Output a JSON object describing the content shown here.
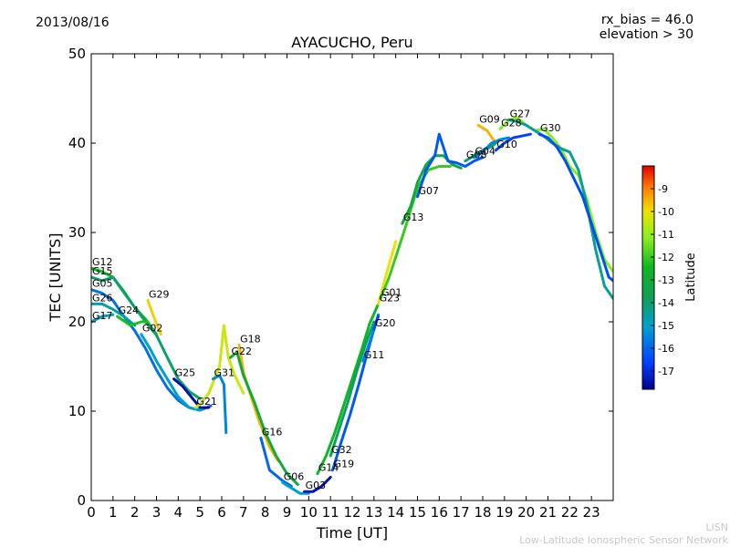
{
  "header": {
    "date": "2013/08/16",
    "rx_bias": "rx_bias = 46.0",
    "elevation": "elevation > 30",
    "title": "AYACUCHO, Peru"
  },
  "credit": {
    "line1": "LISN",
    "line2": "Low-Latitude Ionospheric Sensor Network"
  },
  "chart_data": {
    "type": "scatter",
    "title": "AYACUCHO, Peru",
    "xlabel": "Time [UT]",
    "ylabel": "TEC [UNITS]",
    "xlim": [
      0,
      24
    ],
    "ylim": [
      0,
      50
    ],
    "xticks": [
      "0",
      "1",
      "2",
      "3",
      "4",
      "5",
      "6",
      "7",
      "8",
      "9",
      "10",
      "11",
      "12",
      "13",
      "14",
      "15",
      "16",
      "17",
      "18",
      "19",
      "20",
      "21",
      "22",
      "23"
    ],
    "yticks": [
      "0",
      "10",
      "20",
      "30",
      "40",
      "50"
    ],
    "colorbar": {
      "label": "Latitude",
      "ticks": [
        "-9",
        "-10",
        "-11",
        "-12",
        "-13",
        "-14",
        "-15",
        "-16",
        "-17"
      ],
      "range": [
        -17.8,
        -8.0
      ]
    },
    "series": [
      {
        "name": "G12",
        "lat": -12.5,
        "points": [
          [
            0,
            26
          ],
          [
            0.5,
            25.6
          ],
          [
            1,
            25
          ],
          [
            1.5,
            23.4
          ],
          [
            2,
            21.6
          ],
          [
            2.5,
            20.3
          ],
          [
            3,
            18.6
          ]
        ]
      },
      {
        "name": "G15",
        "lat": -14.0,
        "points": [
          [
            0,
            25
          ],
          [
            0.5,
            24.6
          ],
          [
            1,
            25
          ],
          [
            1.4,
            23.6
          ],
          [
            2,
            21.6
          ],
          [
            2.5,
            20
          ],
          [
            3,
            18.5
          ],
          [
            3.5,
            16
          ],
          [
            4,
            13.6
          ],
          [
            4.5,
            12.2
          ],
          [
            5,
            11.4
          ]
        ]
      },
      {
        "name": "G05",
        "lat": -15.8,
        "points": [
          [
            0,
            23.6
          ],
          [
            0.5,
            23.2
          ],
          [
            1,
            22.4
          ],
          [
            1.5,
            20.6
          ],
          [
            2,
            19
          ],
          [
            2.5,
            17
          ],
          [
            3,
            14.6
          ],
          [
            3.5,
            12.6
          ],
          [
            4,
            11.2
          ],
          [
            4.5,
            10.4
          ],
          [
            5,
            10.1
          ],
          [
            5.5,
            10.6
          ]
        ]
      },
      {
        "name": "G26",
        "lat": -14.6,
        "points": [
          [
            0,
            22
          ],
          [
            0.5,
            22
          ],
          [
            1,
            21.4
          ],
          [
            1.5,
            20.6
          ],
          [
            2,
            19.6
          ]
        ]
      },
      {
        "name": "G17",
        "lat": -14.8,
        "points": [
          [
            0,
            20
          ],
          [
            0.5,
            20.6
          ],
          [
            1,
            20.8
          ]
        ]
      },
      {
        "name": "G24",
        "lat": -12.3,
        "points": [
          [
            1.2,
            20.6
          ],
          [
            1.8,
            19.6
          ],
          [
            2.3,
            20
          ],
          [
            2.6,
            20
          ]
        ]
      },
      {
        "name": "G29",
        "lat": -9.8,
        "points": [
          [
            2.6,
            22.4
          ],
          [
            2.9,
            20.4
          ],
          [
            3.2,
            18.6
          ]
        ]
      },
      {
        "name": "G02",
        "lat": -15.0,
        "points": [
          [
            2.3,
            18.6
          ],
          [
            2.7,
            17
          ],
          [
            3,
            15.6
          ],
          [
            3.5,
            13.6
          ],
          [
            4,
            11.6
          ],
          [
            4.5,
            10.4
          ],
          [
            5,
            10.1
          ],
          [
            5.2,
            10.4
          ]
        ]
      },
      {
        "name": "G25",
        "lat": -17.5,
        "points": [
          [
            3.8,
            13.6
          ],
          [
            4.2,
            12.8
          ],
          [
            4.6,
            11.6
          ],
          [
            5,
            10.4
          ],
          [
            5.4,
            10.4
          ]
        ]
      },
      {
        "name": "G21",
        "lat": -10.4,
        "points": [
          [
            4.8,
            10.4
          ],
          [
            5.1,
            11
          ],
          [
            5.4,
            12
          ],
          [
            5.6,
            13.2
          ],
          [
            5.9,
            15
          ],
          [
            6.1,
            19.6
          ],
          [
            6.3,
            16
          ],
          [
            6.6,
            14
          ],
          [
            7,
            12
          ]
        ]
      },
      {
        "name": "G31",
        "lat": -15.5,
        "points": [
          [
            5.6,
            13.6
          ],
          [
            5.9,
            14
          ],
          [
            6.1,
            13
          ],
          [
            6.2,
            7.6
          ]
        ]
      },
      {
        "name": "G18",
        "lat": -9.5,
        "points": [
          [
            6.8,
            17.4
          ],
          [
            7.0,
            14.4
          ],
          [
            7.3,
            12
          ],
          [
            7.7,
            9
          ],
          [
            8.2,
            6
          ],
          [
            8.6,
            4.4
          ]
        ]
      },
      {
        "name": "G22",
        "lat": -13.2,
        "points": [
          [
            6.4,
            16
          ],
          [
            6.7,
            16.6
          ],
          [
            7,
            14
          ],
          [
            7.5,
            11
          ],
          [
            8,
            7.6
          ],
          [
            8.5,
            5
          ],
          [
            9,
            3
          ],
          [
            9.5,
            1.8
          ]
        ]
      },
      {
        "name": "G16",
        "lat": -16.0,
        "points": [
          [
            7.8,
            7
          ],
          [
            8.2,
            3.4
          ],
          [
            8.8,
            2.2
          ],
          [
            9.2,
            1.6
          ]
        ]
      },
      {
        "name": "G06",
        "lat": -15.0,
        "points": [
          [
            8.8,
            2
          ],
          [
            9.2,
            1.4
          ],
          [
            9.6,
            0.8
          ],
          [
            10,
            0.8
          ]
        ]
      },
      {
        "name": "G03",
        "lat": -17.4,
        "points": [
          [
            9.8,
            1
          ],
          [
            10.2,
            1
          ],
          [
            10.6,
            1.6
          ],
          [
            11,
            2.6
          ]
        ]
      },
      {
        "name": "G14",
        "lat": -12.6,
        "points": [
          [
            10.4,
            3
          ],
          [
            10.8,
            5
          ],
          [
            11.2,
            7.6
          ],
          [
            11.6,
            10.6
          ],
          [
            12,
            13.6
          ],
          [
            12.4,
            16.6
          ],
          [
            12.8,
            19.8
          ],
          [
            13.2,
            22
          ]
        ]
      },
      {
        "name": "G32",
        "lat": -13.8,
        "points": [
          [
            11,
            5
          ],
          [
            11.4,
            8
          ],
          [
            11.8,
            11
          ],
          [
            12.2,
            14.4
          ],
          [
            12.6,
            17.4
          ],
          [
            13,
            20
          ]
        ]
      },
      {
        "name": "G19",
        "lat": -16.2,
        "points": [
          [
            11.1,
            3.4
          ],
          [
            11.5,
            6.6
          ],
          [
            11.9,
            9.6
          ],
          [
            12.3,
            13
          ],
          [
            12.7,
            16.6
          ],
          [
            13.1,
            20
          ]
        ]
      },
      {
        "name": "G11",
        "lat": -15.5,
        "points": [
          [
            12.5,
            15.6
          ],
          [
            12.9,
            18.4
          ],
          [
            13.2,
            20.8
          ]
        ]
      },
      {
        "name": "G20",
        "lat": -16.5,
        "points": [
          [
            13,
            19.2
          ],
          [
            13.2,
            20.6
          ]
        ]
      },
      {
        "name": "G23",
        "lat": -10.0,
        "points": [
          [
            13.2,
            22
          ],
          [
            13.6,
            25.6
          ],
          [
            14,
            29
          ]
        ]
      },
      {
        "name": "G01",
        "lat": -12.0,
        "points": [
          [
            13.3,
            22.6
          ],
          [
            13.7,
            25
          ],
          [
            14.1,
            28
          ],
          [
            14.5,
            31
          ],
          [
            15,
            35
          ],
          [
            15.5,
            37
          ],
          [
            16,
            37.4
          ],
          [
            16.5,
            37.4
          ]
        ]
      },
      {
        "name": "G13",
        "lat": -13.2,
        "points": [
          [
            14.3,
            31
          ],
          [
            14.7,
            33
          ],
          [
            15,
            35.6
          ],
          [
            15.4,
            37.6
          ],
          [
            15.8,
            38.6
          ],
          [
            16.2,
            38.6
          ],
          [
            16.6,
            37.6
          ],
          [
            17,
            37.2
          ]
        ]
      },
      {
        "name": "G07",
        "lat": -16.2,
        "points": [
          [
            15,
            34
          ],
          [
            15.4,
            37
          ],
          [
            15.8,
            38.6
          ],
          [
            16,
            41
          ],
          [
            16.4,
            38
          ],
          [
            16.8,
            37.8
          ],
          [
            17.2,
            37.4
          ],
          [
            17.6,
            38
          ],
          [
            18,
            38.4
          ]
        ]
      },
      {
        "name": "G09",
        "lat": -9.5,
        "points": [
          [
            17.8,
            42
          ],
          [
            18.2,
            41.4
          ],
          [
            18.6,
            40
          ]
        ]
      },
      {
        "name": "G08",
        "lat": -14.0,
        "points": [
          [
            17.2,
            38
          ],
          [
            17.6,
            38.6
          ],
          [
            18,
            39.2
          ],
          [
            18.4,
            39.6
          ],
          [
            18.8,
            40.4
          ]
        ]
      },
      {
        "name": "G04",
        "lat": -15.5,
        "points": [
          [
            17.6,
            38.4
          ],
          [
            18,
            39
          ],
          [
            18.4,
            40
          ],
          [
            18.8,
            40.4
          ],
          [
            19.2,
            40.6
          ]
        ]
      },
      {
        "name": "G10",
        "lat": -16.6,
        "points": [
          [
            18.6,
            39.2
          ],
          [
            19,
            40
          ],
          [
            19.4,
            40.6
          ],
          [
            19.8,
            40.8
          ],
          [
            20.2,
            41
          ]
        ]
      },
      {
        "name": "G28",
        "lat": -11.2,
        "points": [
          [
            18.8,
            41.6
          ],
          [
            19.2,
            42.6
          ],
          [
            19.6,
            42.8
          ],
          [
            20,
            42
          ],
          [
            20.4,
            41.4
          ],
          [
            20.8,
            41.6
          ],
          [
            21.2,
            40.6
          ],
          [
            21.6,
            39.4
          ],
          [
            22,
            37.4
          ],
          [
            22.4,
            36.4
          ],
          [
            22.8,
            33.6
          ],
          [
            23.2,
            30
          ],
          [
            23.6,
            27
          ],
          [
            24,
            25.6
          ]
        ]
      },
      {
        "name": "G27",
        "lat": -14.4,
        "points": [
          [
            19.2,
            42.6
          ],
          [
            19.6,
            42.4
          ],
          [
            20,
            42
          ],
          [
            20.4,
            41.4
          ],
          [
            20.8,
            40.8
          ],
          [
            21.2,
            40
          ],
          [
            21.6,
            39.4
          ],
          [
            22,
            39
          ],
          [
            22.4,
            37
          ],
          [
            22.8,
            33
          ],
          [
            23.2,
            28
          ],
          [
            23.6,
            24
          ],
          [
            24,
            22.6
          ]
        ]
      },
      {
        "name": "G30",
        "lat": -16.4,
        "points": [
          [
            20.6,
            41
          ],
          [
            21,
            40.6
          ],
          [
            21.4,
            39.6
          ],
          [
            21.8,
            38
          ],
          [
            22.2,
            36
          ],
          [
            22.6,
            34
          ],
          [
            23,
            31
          ],
          [
            23.4,
            28
          ],
          [
            23.8,
            25
          ],
          [
            24,
            24.6
          ]
        ]
      }
    ]
  }
}
